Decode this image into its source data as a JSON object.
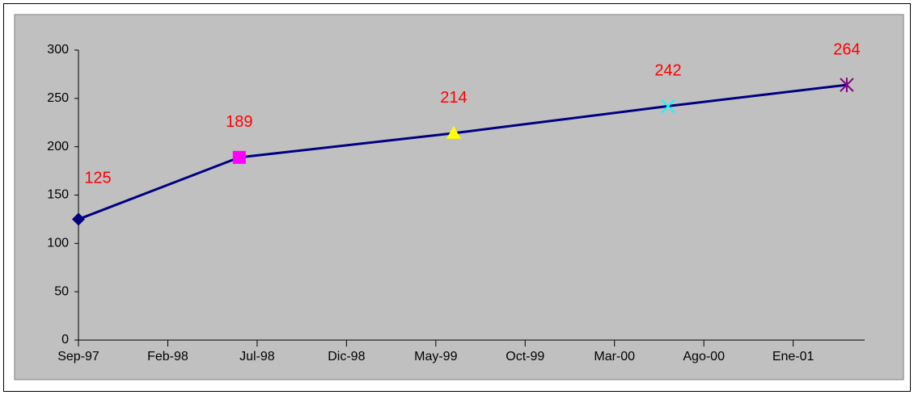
{
  "chart_data": {
    "type": "line",
    "x": [
      "1997-09",
      "1998-06",
      "1999-06",
      "2000-06",
      "2001-04"
    ],
    "series": [
      {
        "values": [
          125,
          189,
          214,
          242,
          264
        ],
        "color": "#000080",
        "markers": [
          "diamond",
          "square",
          "triangle",
          "x",
          "star"
        ],
        "marker_colors": [
          "#000080",
          "#ff00ff",
          "#ffff00",
          "#00ffff",
          "#800080"
        ]
      }
    ],
    "label_color": "#ff0000",
    "xlim": [
      "1997-09",
      "2001-05"
    ],
    "xticks": [
      {
        "value": "1997-09",
        "label": "Sep-97"
      },
      {
        "value": "1998-02",
        "label": "Feb-98"
      },
      {
        "value": "1998-07",
        "label": "Jul-98"
      },
      {
        "value": "1998-12",
        "label": "Dic-98"
      },
      {
        "value": "1999-05",
        "label": "May-99"
      },
      {
        "value": "1999-10",
        "label": "Oct-99"
      },
      {
        "value": "2000-03",
        "label": "Mar-00"
      },
      {
        "value": "2000-08",
        "label": "Ago-00"
      },
      {
        "value": "2001-01",
        "label": "Ene-01"
      }
    ],
    "ylim": [
      0,
      300
    ],
    "yticks": [
      0,
      50,
      100,
      150,
      200,
      250,
      300
    ],
    "plot_background": "#c0c0c0"
  }
}
